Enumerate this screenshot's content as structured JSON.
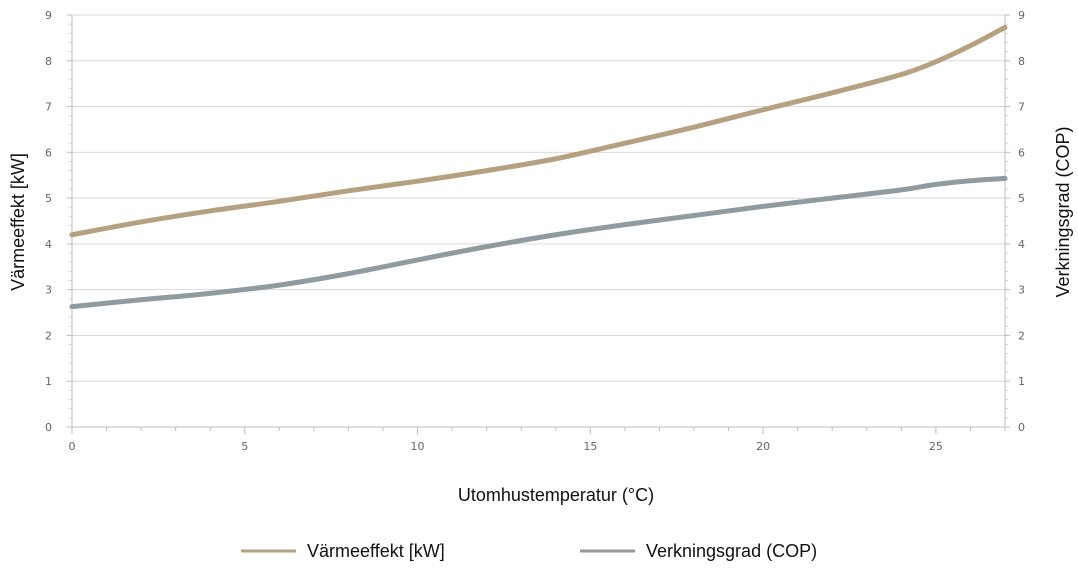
{
  "chart_data": {
    "type": "line",
    "xlabel": "Utomhustemperatur (°C)",
    "ylabel": "Värmeeffekt [kW]",
    "y2label": "Verkningsgrad (COP)",
    "xlim": [
      0,
      27
    ],
    "ylim": [
      0,
      9
    ],
    "y2lim": [
      0,
      9
    ],
    "xticks": [
      0,
      5,
      10,
      15,
      20,
      25
    ],
    "yticks": [
      0,
      1,
      2,
      3,
      4,
      5,
      6,
      7,
      8,
      9
    ],
    "y2ticks": [
      0,
      1,
      2,
      3,
      4,
      5,
      6,
      7,
      8,
      9
    ],
    "grid": true,
    "legend_position": "bottom",
    "series": [
      {
        "name": "Värmeeffekt [kW]",
        "axis": "left",
        "color": "#b5a07f",
        "x": [
          0,
          2,
          4,
          6,
          8,
          10,
          12,
          14,
          16,
          18,
          20,
          22,
          24,
          25,
          26,
          27
        ],
        "y": [
          4.2,
          4.48,
          4.72,
          4.93,
          5.16,
          5.37,
          5.6,
          5.86,
          6.2,
          6.55,
          6.93,
          7.3,
          7.7,
          7.98,
          8.33,
          8.73
        ]
      },
      {
        "name": "Verkningsgrad (COP)",
        "axis": "right",
        "color": "#919a9e",
        "x": [
          0,
          2,
          4,
          6,
          8,
          10,
          12,
          14,
          16,
          18,
          20,
          22,
          24,
          25,
          26,
          27
        ],
        "y": [
          2.63,
          2.78,
          2.92,
          3.1,
          3.35,
          3.65,
          3.94,
          4.2,
          4.42,
          4.62,
          4.82,
          5.0,
          5.18,
          5.3,
          5.38,
          5.43
        ]
      }
    ]
  }
}
